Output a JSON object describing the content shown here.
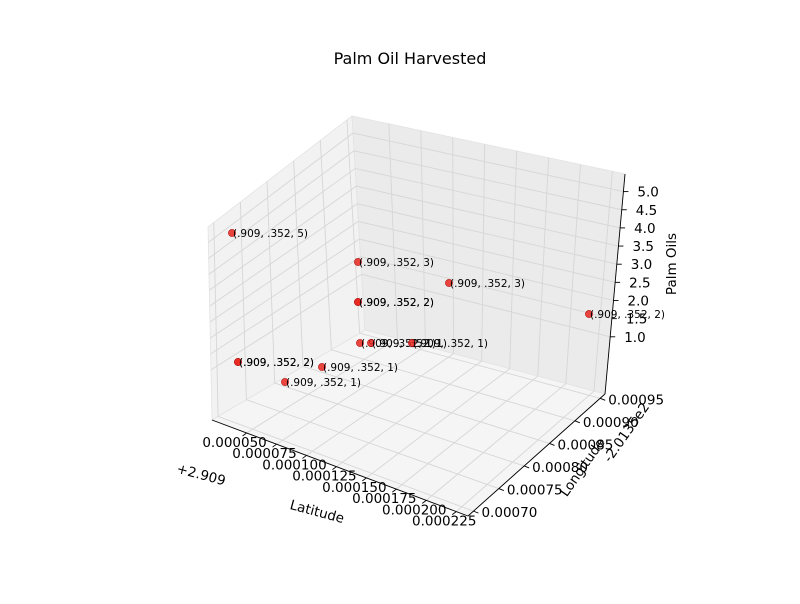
{
  "chart_data": {
    "type": "scatter",
    "projection": "3d",
    "title": "Palm Oil Harvested",
    "xlabel": "Latitude",
    "ylabel": "Longitude",
    "zlabel": "Palm Oils",
    "x_offset_label": "+2.909",
    "y_offset_label": "-2.0135e2",
    "x_ticks": [
      "0.000050",
      "0.000075",
      "0.000100",
      "0.000125",
      "0.000150",
      "0.000175",
      "0.000200",
      "0.000225"
    ],
    "y_ticks": [
      "0.00070",
      "0.00075",
      "0.00080",
      "0.00085",
      "0.00090",
      "0.00095"
    ],
    "z_ticks": [
      "1.0",
      "1.5",
      "2.0",
      "2.5",
      "3.0",
      "3.5",
      "4.0",
      "4.5",
      "5.0"
    ],
    "marker_color": "#e8271e",
    "grid": true,
    "points": [
      {
        "z": 5,
        "label": "(.909, .352, 5)"
      },
      {
        "z": 3,
        "label": "(.909, .352, 3)"
      },
      {
        "z": 3,
        "label": "(.909, .352, 3)"
      },
      {
        "z": 2,
        "label": "(.909, .352, 2)"
      },
      {
        "z": 2,
        "label": "(.909, .352, 2)"
      },
      {
        "z": 2,
        "label": "(.909, .352, 2)"
      },
      {
        "z": 2,
        "label": "(.909, .352, 2)"
      },
      {
        "z": 2,
        "label": "(.909, .352, 2)"
      },
      {
        "z": 1,
        "label": "(.909, .352, 1)"
      },
      {
        "z": 1,
        "label": "(.909, .352, 1)"
      },
      {
        "z": 1,
        "label": "(.909, .352, 1)"
      },
      {
        "z": 1,
        "label": "(.909, .352, 1)"
      },
      {
        "z": 1,
        "label": "(.909, .352, 1)"
      }
    ]
  }
}
